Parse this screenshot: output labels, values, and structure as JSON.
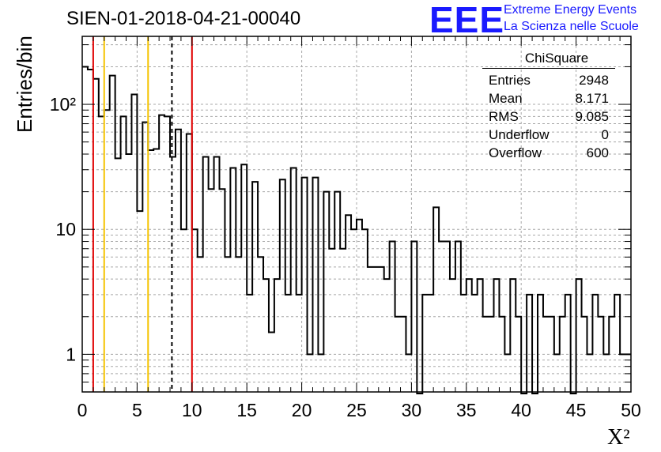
{
  "header": {
    "run_id": "SIEN-01-2018-04-21-00040",
    "logo_mark": "EEE",
    "logo_line1": "Extreme Energy Events",
    "logo_line2": "La Scienza nelle Scuole"
  },
  "stats_box": {
    "title": "ChiSquare",
    "rows": [
      {
        "label": "Entries",
        "value": "2948"
      },
      {
        "label": "Mean",
        "value": "8.171"
      },
      {
        "label": "RMS",
        "value": "9.085"
      },
      {
        "label": "Underflow",
        "value": "0"
      },
      {
        "label": "Overflow",
        "value": "600"
      }
    ]
  },
  "chart_data": {
    "type": "histogram",
    "ylabel": "Entries/bin",
    "xlabel": "X²",
    "xlim": [
      0,
      50
    ],
    "ylim": [
      0.5,
      350
    ],
    "y_scale": "log",
    "bin_width": 0.5,
    "grid": true,
    "x_ticks": [
      "0",
      "5",
      "10",
      "15",
      "20",
      "25",
      "30",
      "35",
      "40",
      "45",
      "50"
    ],
    "y_tick_labels": [
      "1",
      "10",
      "10²"
    ],
    "values": [
      200,
      190,
      160,
      80,
      90,
      170,
      37,
      80,
      40,
      120,
      14,
      72,
      43,
      44,
      82,
      80,
      38,
      63,
      10,
      58,
      10,
      6,
      38,
      21,
      38,
      21,
      6,
      31,
      6,
      33,
      3,
      24,
      6,
      4,
      1.5,
      4,
      25,
      3,
      31,
      3,
      26,
      1,
      26,
      1,
      20,
      7,
      20,
      7,
      13,
      10,
      12,
      10,
      5,
      5,
      5,
      4,
      8,
      2,
      2,
      1,
      8,
      0,
      3,
      3,
      15,
      8,
      8,
      4,
      8,
      3,
      4,
      3,
      4,
      2,
      2,
      4,
      2,
      1,
      4,
      2,
      0,
      3,
      0,
      3,
      2,
      2,
      1,
      2,
      3,
      0,
      4,
      2,
      1,
      3,
      2,
      1,
      2,
      3,
      1,
      1
    ],
    "reference_lines": [
      {
        "x": 1,
        "color": "#e00000",
        "style": "solid"
      },
      {
        "x": 2,
        "color": "#f5c400",
        "style": "solid"
      },
      {
        "x": 6,
        "color": "#f5c400",
        "style": "solid"
      },
      {
        "x": 8.171,
        "color": "#000000",
        "style": "dashed"
      },
      {
        "x": 10,
        "color": "#e00000",
        "style": "solid"
      }
    ]
  }
}
